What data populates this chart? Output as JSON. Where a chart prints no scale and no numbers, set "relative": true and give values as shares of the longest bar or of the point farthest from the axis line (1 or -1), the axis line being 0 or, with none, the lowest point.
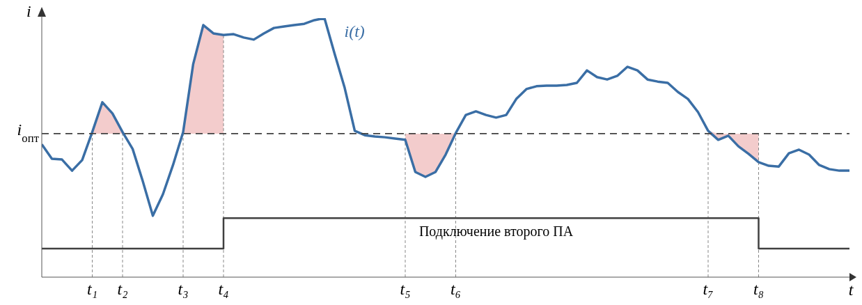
{
  "chart_data": {
    "type": "line",
    "relative": true,
    "xlabel": "t",
    "ylabel": "i",
    "grid": "x",
    "tick_labels": "x",
    "categories": [
      null,
      null,
      null,
      null,
      null,
      "t₁",
      null,
      null,
      "t₂",
      null,
      null,
      null,
      null,
      null,
      "t₃",
      null,
      null,
      null,
      "t₄",
      null,
      null,
      null,
      null,
      null,
      null,
      null,
      null,
      null,
      null,
      null,
      null,
      null,
      null,
      null,
      null,
      null,
      "t₅",
      null,
      null,
      null,
      null,
      "t₆",
      null,
      null,
      null,
      null,
      null,
      null,
      null,
      null,
      null,
      null,
      null,
      null,
      null,
      null,
      null,
      null,
      null,
      null,
      null,
      null,
      null,
      null,
      null,
      null,
      "t₇",
      null,
      null,
      null,
      null,
      "t₈",
      null,
      null,
      null,
      null,
      null,
      null,
      null,
      null,
      null
    ],
    "series": [
      {
        "name": "i(t)",
        "color": "#3a6ea5",
        "values": [
          0.513,
          0.457,
          0.454,
          0.411,
          0.452,
          0.56,
          0.675,
          0.632,
          0.56,
          0.495,
          0.371,
          0.237,
          0.32,
          0.433,
          0.56,
          0.823,
          0.973,
          0.941,
          0.935,
          0.938,
          0.925,
          0.917,
          0.941,
          0.962,
          0.968,
          0.973,
          0.978,
          0.992,
          1,
          0.863,
          0.731,
          0.565,
          0.548,
          0.543,
          0.54,
          0.535,
          0.53,
          0.406,
          0.387,
          0.406,
          0.473,
          0.556,
          0.626,
          0.64,
          0.626,
          0.616,
          0.626,
          0.688,
          0.726,
          0.737,
          0.739,
          0.739,
          0.742,
          0.75,
          0.798,
          0.772,
          0.763,
          0.777,
          0.812,
          0.798,
          0.763,
          0.755,
          0.75,
          0.715,
          0.688,
          0.637,
          0.565,
          0.53,
          0.546,
          0.505,
          0.476,
          0.444,
          0.43,
          0.427,
          0.478,
          0.492,
          0.473,
          0.433,
          0.417,
          0.411,
          0.411
        ],
        "lower": [
          null,
          null,
          null,
          null,
          null,
          0.554,
          0.554,
          0.554,
          0.554,
          null,
          null,
          null,
          null,
          null,
          0.554,
          0.554,
          0.554,
          0.554,
          0.554,
          null,
          null,
          null,
          null,
          null,
          null,
          null,
          null,
          null,
          null,
          null,
          null,
          null,
          null,
          null,
          null,
          null,
          0.53,
          0.406,
          0.387,
          0.406,
          0.473,
          0.554,
          null,
          null,
          null,
          null,
          null,
          null,
          null,
          null,
          null,
          null,
          null,
          null,
          null,
          null,
          null,
          null,
          null,
          null,
          null,
          null,
          null,
          null,
          null,
          null,
          0.554,
          0.53,
          0.546,
          0.505,
          0.476,
          0.444,
          null,
          null,
          null,
          null,
          null,
          null,
          null,
          null,
          null
        ],
        "upper": [
          null,
          null,
          null,
          null,
          null,
          0.56,
          0.675,
          0.632,
          0.56,
          null,
          null,
          null,
          null,
          null,
          0.56,
          0.823,
          0.973,
          0.941,
          0.935,
          null,
          null,
          null,
          null,
          null,
          null,
          null,
          null,
          null,
          null,
          null,
          null,
          null,
          null,
          null,
          null,
          null,
          0.554,
          0.554,
          0.554,
          0.554,
          0.554,
          0.556,
          null,
          null,
          null,
          null,
          null,
          null,
          null,
          null,
          null,
          null,
          null,
          null,
          null,
          null,
          null,
          null,
          null,
          null,
          null,
          null,
          null,
          null,
          null,
          null,
          0.565,
          0.554,
          0.554,
          0.554,
          0.554,
          0.554,
          null,
          null,
          null,
          null,
          null,
          null,
          null,
          null,
          null
        ]
      },
      {
        "name": "Подключение второго ПА",
        "type": "step",
        "color": "#404040",
        "values": [
          0.11,
          0.11,
          0.11,
          0.11,
          0.11,
          0.11,
          0.11,
          0.11,
          0.11,
          0.11,
          0.11,
          0.11,
          0.11,
          0.11,
          0.11,
          0.11,
          0.11,
          0.11,
          0.228,
          0.228,
          0.228,
          0.228,
          0.228,
          0.228,
          0.228,
          0.228,
          0.228,
          0.228,
          0.228,
          0.228,
          0.228,
          0.228,
          0.228,
          0.228,
          0.228,
          0.228,
          0.228,
          0.228,
          0.228,
          0.228,
          0.228,
          0.228,
          0.228,
          0.228,
          0.228,
          0.228,
          0.228,
          0.228,
          0.228,
          0.228,
          0.228,
          0.228,
          0.228,
          0.228,
          0.228,
          0.228,
          0.228,
          0.228,
          0.228,
          0.228,
          0.228,
          0.228,
          0.228,
          0.228,
          0.228,
          0.228,
          0.228,
          0.228,
          0.228,
          0.228,
          0.228,
          0.11,
          0.11,
          0.11,
          0.11,
          0.11,
          0.11,
          0.11,
          0.11,
          0.11,
          0.11
        ]
      }
    ],
    "ref_lines": [
      {
        "axis": "y",
        "value": 0.554,
        "label": "i$_{опт}$",
        "color": "#404040",
        "line_style": "dashed"
      }
    ]
  }
}
